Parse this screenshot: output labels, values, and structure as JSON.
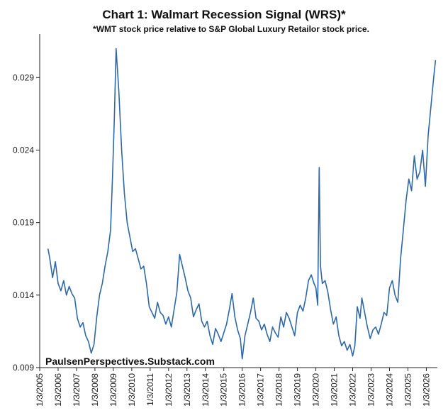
{
  "chart_data": {
    "type": "line",
    "title": "Chart 1: Walmart Recession Signal (WRS)*",
    "subtitle": "*WMT stock price relative to S&P Global Luxury Retailor stock price.",
    "watermark": "PaulsenPerspectives.Substack.com",
    "xlabel": "",
    "ylabel": "",
    "ylim": [
      0.009,
      0.032
    ],
    "xlim": [
      2005.0,
      2026.6
    ],
    "grid": false,
    "y_ticks": [
      0.009,
      0.014,
      0.019,
      0.024,
      0.029
    ],
    "y_tick_labels": [
      "0.009",
      "0.014",
      "0.019",
      "0.024",
      "0.029"
    ],
    "x_tick_labels": [
      "1/3/2005",
      "1/3/2006",
      "1/3/2007",
      "1/3/2008",
      "1/3/2009",
      "1/3/2010",
      "1/3/2011",
      "1/3/2012",
      "1/3/2013",
      "1/3/2014",
      "1/3/2015",
      "1/3/2016",
      "1/3/2017",
      "1/3/2018",
      "1/3/2019",
      "1/3/2020",
      "1/3/2021",
      "1/3/2022",
      "1/3/2023",
      "1/3/2024",
      "1/3/2025",
      "1/3/2026"
    ],
    "series": [
      {
        "name": "WRS",
        "color": "#2e68a6",
        "x": [
          2005.45,
          2005.55,
          2005.7,
          2005.85,
          2006.0,
          2006.15,
          2006.3,
          2006.45,
          2006.6,
          2006.75,
          2006.9,
          2007.05,
          2007.2,
          2007.35,
          2007.5,
          2007.65,
          2007.8,
          2007.95,
          2008.1,
          2008.25,
          2008.4,
          2008.55,
          2008.7,
          2008.85,
          2008.95,
          2009.05,
          2009.15,
          2009.3,
          2009.45,
          2009.6,
          2009.75,
          2009.9,
          2010.05,
          2010.2,
          2010.35,
          2010.5,
          2010.65,
          2010.8,
          2010.95,
          2011.1,
          2011.25,
          2011.4,
          2011.55,
          2011.7,
          2011.85,
          2012.0,
          2012.15,
          2012.3,
          2012.45,
          2012.6,
          2012.75,
          2012.9,
          2013.05,
          2013.2,
          2013.35,
          2013.5,
          2013.65,
          2013.8,
          2013.95,
          2014.1,
          2014.25,
          2014.4,
          2014.55,
          2014.7,
          2014.85,
          2015.0,
          2015.15,
          2015.3,
          2015.45,
          2015.6,
          2015.75,
          2015.9,
          2016.0,
          2016.15,
          2016.3,
          2016.45,
          2016.6,
          2016.75,
          2016.9,
          2017.05,
          2017.2,
          2017.35,
          2017.5,
          2017.65,
          2017.8,
          2017.95,
          2018.1,
          2018.25,
          2018.4,
          2018.55,
          2018.7,
          2018.85,
          2019.0,
          2019.15,
          2019.3,
          2019.45,
          2019.6,
          2019.75,
          2019.9,
          2020.0,
          2020.1,
          2020.18,
          2020.25,
          2020.35,
          2020.5,
          2020.65,
          2020.8,
          2020.95,
          2021.1,
          2021.25,
          2021.4,
          2021.55,
          2021.7,
          2021.85,
          2022.0,
          2022.12,
          2022.25,
          2022.4,
          2022.5,
          2022.65,
          2022.8,
          2022.95,
          2023.1,
          2023.25,
          2023.4,
          2023.55,
          2023.7,
          2023.85,
          2024.0,
          2024.15,
          2024.3,
          2024.45,
          2024.6,
          2024.75,
          2024.9,
          2025.05,
          2025.2,
          2025.35,
          2025.5,
          2025.65,
          2025.8,
          2025.95,
          2026.1,
          2026.25,
          2026.4,
          2026.5
        ],
        "y": [
          0.0172,
          0.0165,
          0.0152,
          0.0163,
          0.0148,
          0.0143,
          0.015,
          0.014,
          0.0146,
          0.0141,
          0.0138,
          0.0124,
          0.0118,
          0.0121,
          0.0112,
          0.0108,
          0.01,
          0.0106,
          0.0125,
          0.014,
          0.0148,
          0.016,
          0.017,
          0.0185,
          0.022,
          0.026,
          0.031,
          0.028,
          0.024,
          0.021,
          0.019,
          0.018,
          0.017,
          0.0172,
          0.0165,
          0.0158,
          0.016,
          0.0148,
          0.0132,
          0.0128,
          0.0124,
          0.0135,
          0.0128,
          0.0126,
          0.012,
          0.0125,
          0.0118,
          0.013,
          0.0142,
          0.0168,
          0.016,
          0.0152,
          0.0143,
          0.0138,
          0.0125,
          0.013,
          0.0134,
          0.0122,
          0.0118,
          0.0122,
          0.0112,
          0.0106,
          0.0117,
          0.0113,
          0.0108,
          0.0114,
          0.012,
          0.013,
          0.0141,
          0.0125,
          0.0116,
          0.011,
          0.0096,
          0.0112,
          0.012,
          0.0128,
          0.0138,
          0.0124,
          0.0122,
          0.0116,
          0.012,
          0.0113,
          0.0108,
          0.0118,
          0.0114,
          0.0111,
          0.0125,
          0.0118,
          0.0128,
          0.0124,
          0.0118,
          0.0112,
          0.0128,
          0.0133,
          0.0129,
          0.0138,
          0.015,
          0.0154,
          0.0148,
          0.0145,
          0.0133,
          0.0228,
          0.016,
          0.0148,
          0.015,
          0.0142,
          0.013,
          0.012,
          0.0125,
          0.0112,
          0.0105,
          0.0108,
          0.0102,
          0.0106,
          0.0098,
          0.0105,
          0.0132,
          0.0124,
          0.0138,
          0.0128,
          0.0118,
          0.011,
          0.0116,
          0.0118,
          0.0113,
          0.012,
          0.0128,
          0.0126,
          0.0145,
          0.015,
          0.014,
          0.0135,
          0.0165,
          0.0185,
          0.0205,
          0.022,
          0.0212,
          0.0236,
          0.022,
          0.0225,
          0.024,
          0.0215,
          0.025,
          0.027,
          0.029,
          0.0302
        ]
      }
    ]
  }
}
